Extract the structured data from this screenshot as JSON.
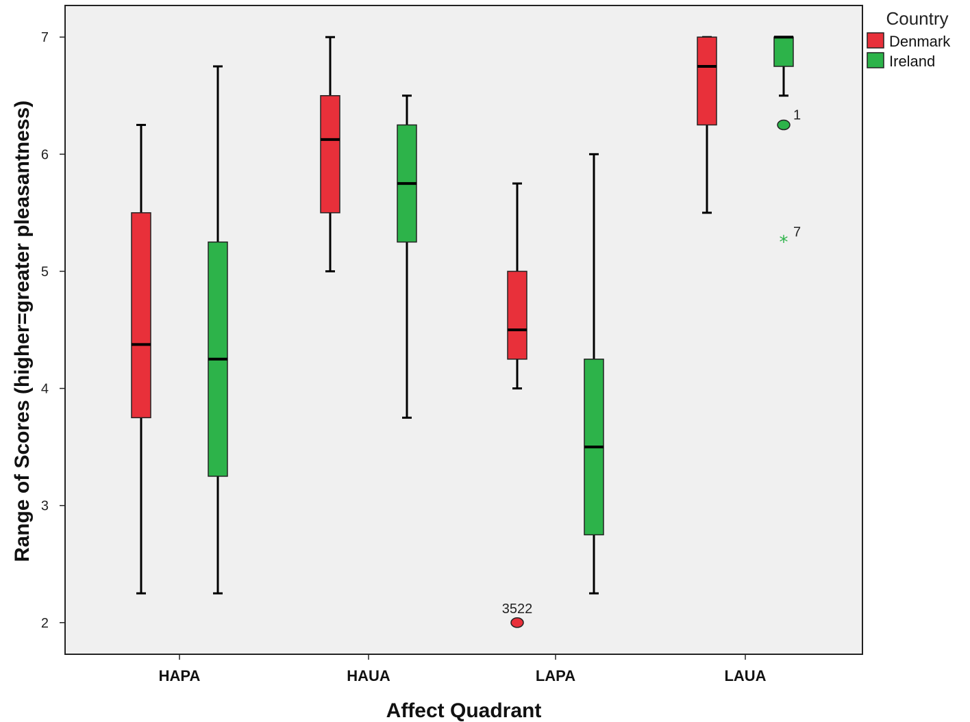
{
  "chart_data": {
    "type": "boxplot",
    "xlabel": "Affect Quadrant",
    "ylabel": "Range of Scores (higher=greater pleasantness)",
    "ylim": [
      1.73,
      7.27
    ],
    "yticks": [
      2,
      3,
      4,
      5,
      6,
      7
    ],
    "categories": [
      "HAPA",
      "HAUA",
      "LAPA",
      "LAUA"
    ],
    "grid": false,
    "legend": {
      "title": "Country",
      "position": "top-right, outside plot",
      "entries": [
        {
          "name": "Denmark",
          "color": "#e8303a"
        },
        {
          "name": "Ireland",
          "color": "#2db34a"
        }
      ]
    },
    "series": [
      {
        "name": "Denmark",
        "color": "#e8303a",
        "boxes": [
          {
            "category": "HAPA",
            "min": 2.25,
            "q1": 3.75,
            "median": 4.375,
            "q3": 5.5,
            "max": 6.25,
            "outliers": []
          },
          {
            "category": "HAUA",
            "min": 5.0,
            "q1": 5.5,
            "median": 6.125,
            "q3": 6.5,
            "max": 7.0,
            "outliers": []
          },
          {
            "category": "LAPA",
            "min": 4.0,
            "q1": 4.25,
            "median": 4.5,
            "q3": 5.0,
            "max": 5.75,
            "outliers": [
              {
                "value": 2.0,
                "label": "3522",
                "marker": "circle"
              }
            ]
          },
          {
            "category": "LAUA",
            "min": 5.5,
            "q1": 6.25,
            "median": 6.75,
            "q3": 7.0,
            "max": 7.0,
            "outliers": []
          }
        ]
      },
      {
        "name": "Ireland",
        "color": "#2db34a",
        "boxes": [
          {
            "category": "HAPA",
            "min": 2.25,
            "q1": 3.25,
            "median": 4.25,
            "q3": 5.25,
            "max": 6.75,
            "outliers": []
          },
          {
            "category": "HAUA",
            "min": 3.75,
            "q1": 5.25,
            "median": 5.75,
            "q3": 6.25,
            "max": 6.5,
            "outliers": []
          },
          {
            "category": "LAPA",
            "min": 2.25,
            "q1": 2.75,
            "median": 3.5,
            "q3": 4.25,
            "max": 6.0,
            "outliers": []
          },
          {
            "category": "LAUA",
            "min": 6.5,
            "q1": 6.75,
            "median": 7.0,
            "q3": 7.0,
            "max": 7.0,
            "outliers": [
              {
                "value": 6.25,
                "label": "1",
                "marker": "circle"
              },
              {
                "value": 5.25,
                "label": "7",
                "marker": "star"
              }
            ]
          }
        ]
      }
    ]
  }
}
